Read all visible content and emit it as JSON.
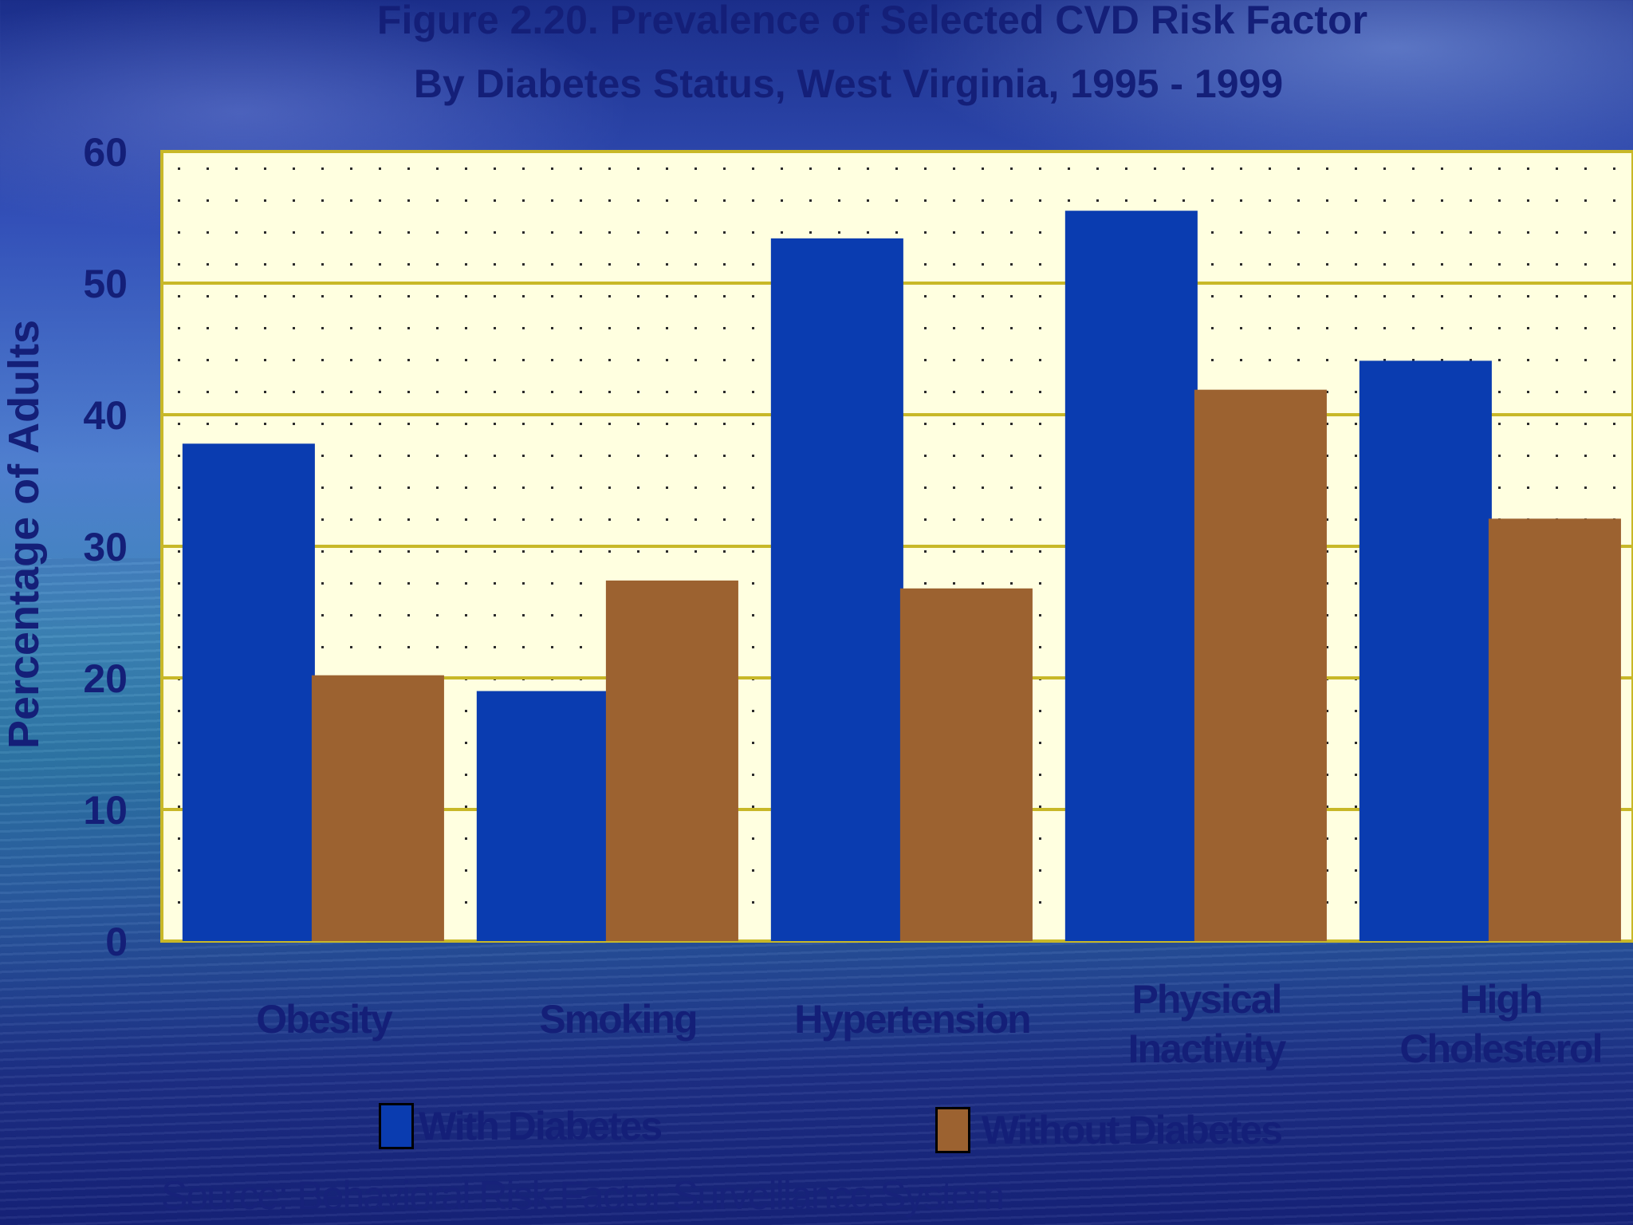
{
  "chart_data": {
    "type": "bar",
    "title": "Figure 2.20. Prevalence of Selected CVD Risk Factor",
    "subtitle": "By Diabetes Status, West Virginia, 1995 - 1999",
    "ylabel": "Percentage of Adults",
    "xlabel": "",
    "ylim": [
      0,
      60
    ],
    "yticks": [
      "0",
      "10",
      "20",
      "30",
      "40",
      "50",
      "60"
    ],
    "categories": [
      [
        "Obesity"
      ],
      [
        "Smoking"
      ],
      [
        "Hypertension"
      ],
      [
        "Physical",
        "Inactivity"
      ],
      [
        "High",
        "Cholesterol"
      ]
    ],
    "series": [
      {
        "name": "With Diabetes",
        "color": "#0a3cb0",
        "values": [
          37.8,
          19,
          53.4,
          55.5,
          44.1
        ]
      },
      {
        "name": "Without Diabetes",
        "color": "#9c6230",
        "values": [
          20.2,
          27.4,
          26.8,
          41.9,
          32.1
        ]
      }
    ],
    "grid": true,
    "plot_background": "#ffffe0",
    "gridline_color": "#c8b828",
    "legend_position": "bottom",
    "source": "Source: Behavioral Risk Factor Surveillance System"
  }
}
